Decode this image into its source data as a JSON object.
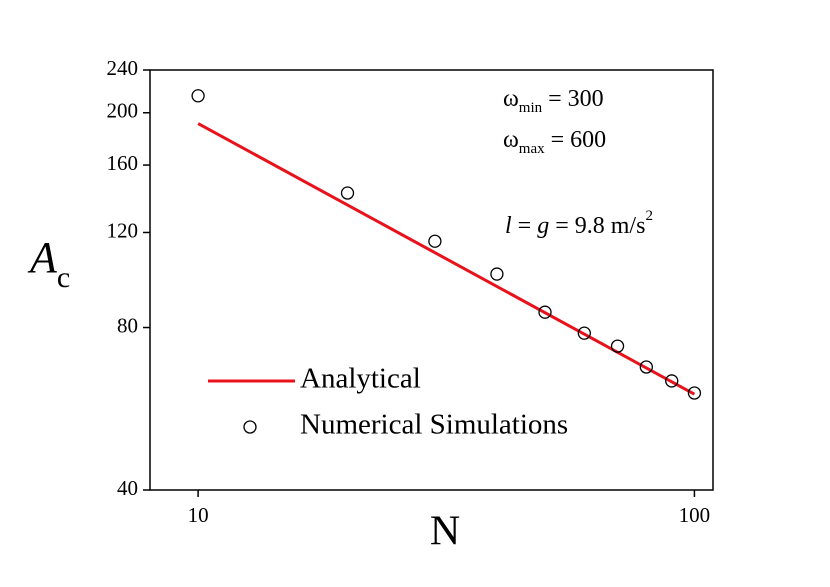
{
  "chart_data": {
    "type": "line",
    "xlabel": "N",
    "ylabel": {
      "main": "A",
      "sub": "c"
    },
    "xscale": "log",
    "yscale": "log",
    "xlim": [
      8,
      109
    ],
    "ylim": [
      40,
      240
    ],
    "xticks": [
      10,
      100
    ],
    "yticks": [
      40,
      80,
      120,
      160,
      200,
      240
    ],
    "legend": "lower left",
    "series": [
      {
        "name": "Analytical",
        "type": "line",
        "color": "#e8121b",
        "x": [
          10,
          100
        ],
        "values": [
          191,
          60.2
        ]
      },
      {
        "name": "Numerical Simulations",
        "type": "scatter",
        "color": "#000000",
        "x": [
          10,
          20,
          30,
          40,
          50,
          60,
          70,
          80,
          90,
          100
        ],
        "values": [
          215,
          142,
          115.6,
          100.5,
          85.4,
          78.1,
          73.9,
          67.6,
          63.7,
          60.5
        ]
      }
    ],
    "annotations": [
      {
        "segments": [
          {
            "text": "ω",
            "style": "normal"
          },
          {
            "text": "min",
            "style": "sub"
          },
          {
            "text": " = 300",
            "style": "normal"
          }
        ]
      },
      {
        "segments": [
          {
            "text": "ω",
            "style": "normal"
          },
          {
            "text": "max",
            "style": "sub"
          },
          {
            "text": " = 600",
            "style": "normal"
          }
        ]
      },
      {
        "segments": [
          {
            "text": "l",
            "style": "italic"
          },
          {
            "text": " = ",
            "style": "normal"
          },
          {
            "text": "g",
            "style": "italic"
          },
          {
            "text": " = 9.8 m/s",
            "style": "normal"
          },
          {
            "text": "2",
            "style": "sup"
          }
        ]
      }
    ]
  }
}
